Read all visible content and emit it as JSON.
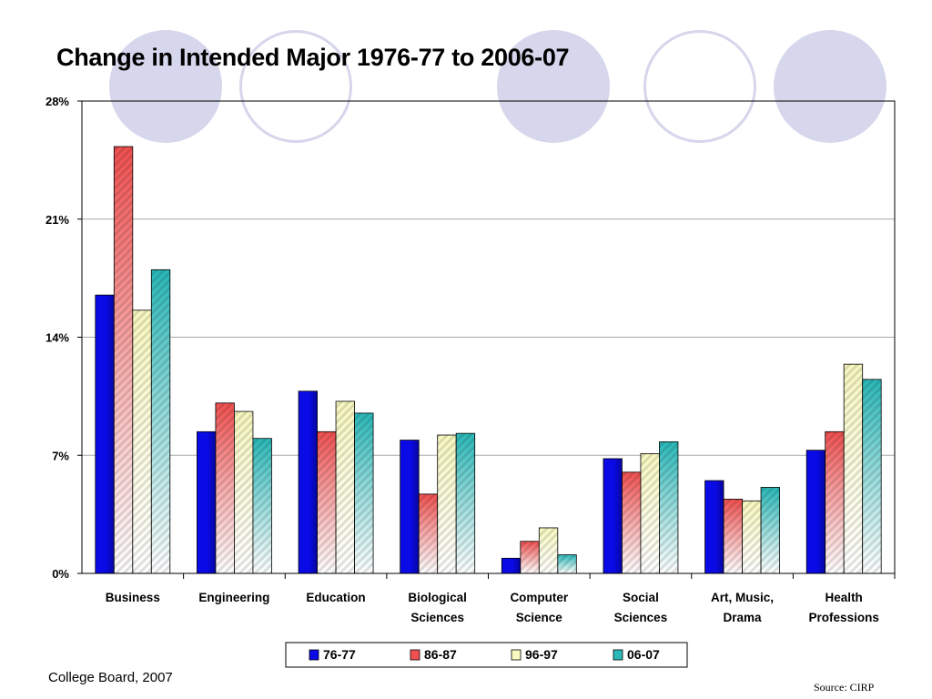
{
  "slide": {
    "title": "Change in Intended Major 1976-77 to 2006-07",
    "footer_left": "College Board, 2007",
    "footer_right": "Source: CIRP"
  },
  "colors": {
    "series": [
      "#0a0ae6",
      "#f05050",
      "#f8f8c0",
      "#2ab8b8"
    ],
    "decor": "#d6d6ec"
  },
  "chart_data": {
    "type": "bar",
    "title": "",
    "xlabel": "",
    "ylabel": "",
    "ylim": [
      0,
      28
    ],
    "yticks": [
      "0%",
      "7%",
      "14%",
      "21%",
      "28%"
    ],
    "ytick_values": [
      0,
      7,
      14,
      21,
      28
    ],
    "grid": true,
    "legend_position": "bottom",
    "categories": [
      [
        "Business"
      ],
      [
        "Engineering"
      ],
      [
        "Education"
      ],
      [
        "Biological",
        "Sciences"
      ],
      [
        "Computer",
        "Science"
      ],
      [
        "Social",
        "Sciences"
      ],
      [
        "Art, Music,",
        "Drama"
      ],
      [
        "Health",
        "Professions"
      ]
    ],
    "series": [
      {
        "name": "76-77",
        "values": [
          16.5,
          8.4,
          10.8,
          7.9,
          0.9,
          6.8,
          5.5,
          7.3
        ]
      },
      {
        "name": "86-87",
        "values": [
          25.3,
          10.1,
          8.4,
          4.7,
          1.9,
          6.0,
          4.4,
          8.4
        ]
      },
      {
        "name": "96-97",
        "values": [
          15.6,
          9.6,
          10.2,
          8.2,
          2.7,
          7.1,
          4.3,
          12.4
        ]
      },
      {
        "name": "06-07",
        "values": [
          18.0,
          8.0,
          9.5,
          8.3,
          1.1,
          7.8,
          5.1,
          11.5
        ]
      }
    ]
  }
}
